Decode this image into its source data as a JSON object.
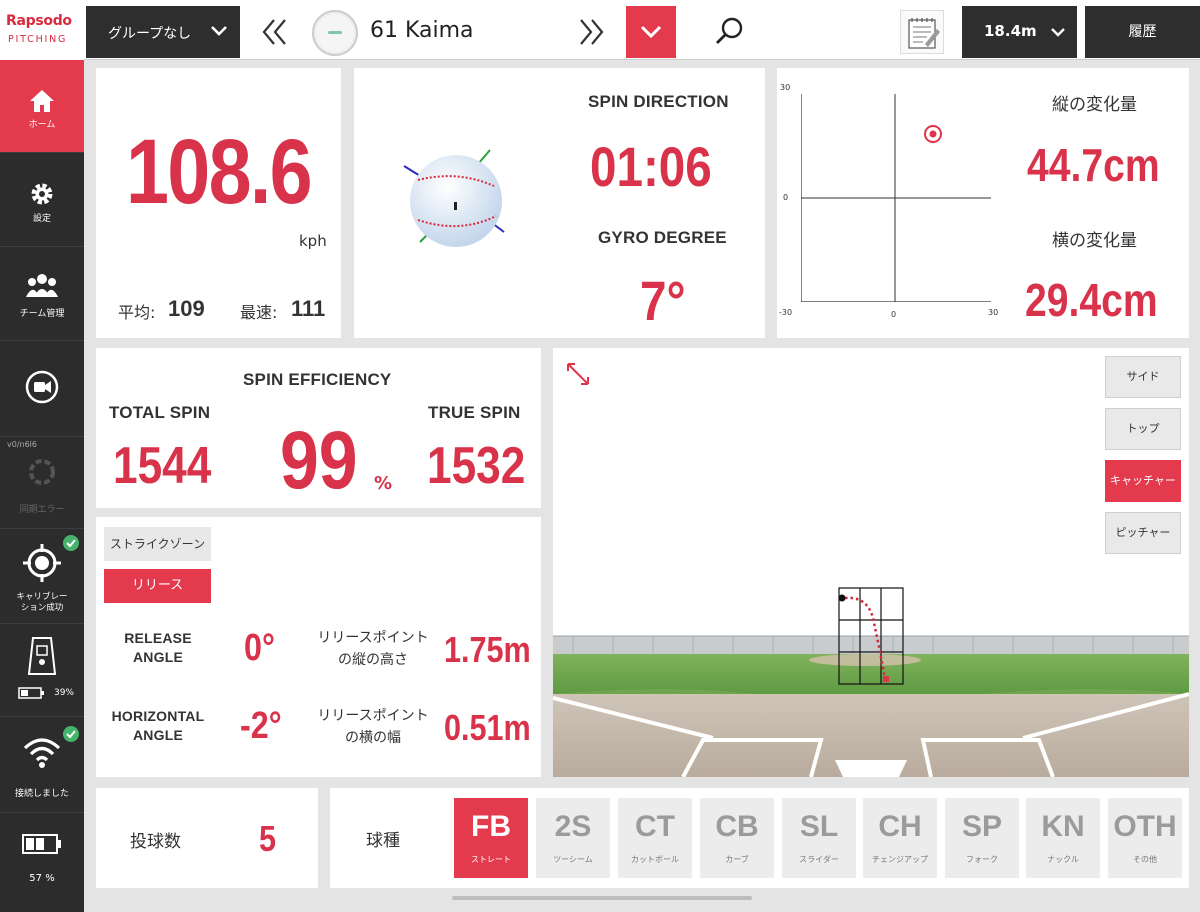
{
  "logo": {
    "brand": "Rapsodo",
    "product": "PITCHING"
  },
  "header": {
    "group_select": "グループなし",
    "pitcher_name": "61 Kaima",
    "distance": "18.4m",
    "history": "履歴"
  },
  "sidebar": {
    "home": "ホーム",
    "settings": "設定",
    "team": "チーム管理",
    "version": "v0/n6l6",
    "error": "同期エラー",
    "calibration": "キャリブレー\nション成功",
    "battery_device": "39%",
    "connection": "接続しました",
    "battery_ipad": "57 %"
  },
  "speed": {
    "value": "108.6",
    "unit": "kph",
    "avg_label": "平均:",
    "avg_value": "109",
    "max_label": "最速:",
    "max_value": "111"
  },
  "spin": {
    "direction_label": "SPIN DIRECTION",
    "direction_value": "01:06",
    "gyro_label": "GYRO DEGREE",
    "gyro_value": "7°"
  },
  "movement": {
    "vertical_label": "縦の変化量",
    "vertical_value": "44.7cm",
    "horizontal_label": "横の変化量",
    "horizontal_value": "29.4cm",
    "axis": {
      "top": "30",
      "mid_y": "0",
      "bottom_left": "-30",
      "mid_x": "0",
      "right": "30"
    }
  },
  "efficiency": {
    "title": "SPIN EFFICIENCY",
    "total_label": "TOTAL SPIN",
    "total_value": "1544",
    "percent_value": "99",
    "percent_unit": "%",
    "true_label": "TRUE SPIN",
    "true_value": "1532"
  },
  "release": {
    "tab_strike": "ストライクゾーン",
    "tab_release": "リリース",
    "release_angle_label": "RELEASE\nANGLE",
    "release_angle_value": "0°",
    "height_label": "リリースポイント\nの縦の高さ",
    "height_value": "1.75m",
    "horizontal_angle_label": "HORIZONTAL\nANGLE",
    "horizontal_angle_value": "-2°",
    "width_label": "リリースポイント\nの横の幅",
    "width_value": "0.51m"
  },
  "view_buttons": [
    "サイド",
    "トップ",
    "キャッチャー",
    "ピッチャー"
  ],
  "pitch_count": {
    "label": "投球数",
    "value": "5"
  },
  "pitch_types": {
    "label": "球種",
    "items": [
      {
        "code": "FB",
        "name": "ストレート"
      },
      {
        "code": "2S",
        "name": "ツーシーム"
      },
      {
        "code": "CT",
        "name": "カットボール"
      },
      {
        "code": "CB",
        "name": "カーブ"
      },
      {
        "code": "SL",
        "name": "スライダー"
      },
      {
        "code": "CH",
        "name": "チェンジアップ"
      },
      {
        "code": "SP",
        "name": "フォーク"
      },
      {
        "code": "KN",
        "name": "ナックル"
      },
      {
        "code": "OTH",
        "name": "その他"
      }
    ]
  },
  "colors": {
    "accent": "#e33a4e",
    "dark": "#2c2c2c",
    "success": "#45b36b"
  }
}
